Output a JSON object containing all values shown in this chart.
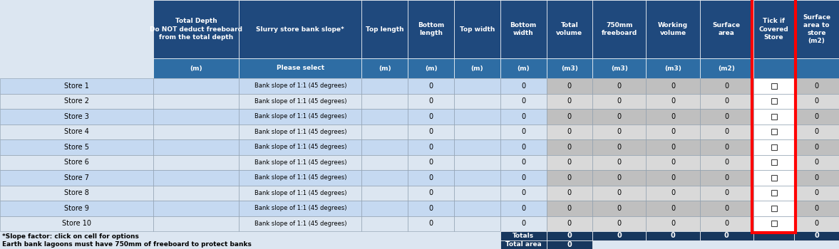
{
  "header_bg": "#1f497d",
  "header_bg2": "#2e6da4",
  "row_light": "#c5d9f1",
  "row_lighter": "#dce6f1",
  "grey_dark": "#bfbfbf",
  "grey_light": "#d9d9d9",
  "tick_bg": "#ffffff",
  "left_bg": "#dce6f1",
  "footer_bg": "#17375e",
  "white": "#ffffff",
  "black": "#000000",
  "red": "#ff0000",
  "col_headers": [
    "Total Depth\nDo NOT deduct freeboard\nfrom the total depth",
    "Slurry store bank slope*",
    "Top length",
    "Bottom\nlength",
    "Top width",
    "Bottom\nwidth",
    "Total\nvolume",
    "750mm\nfreeboard",
    "Working\nvolume",
    "Surface\narea",
    "Tick if\nCovered\nStore",
    "Surface\narea to\nstore\n(m2)"
  ],
  "col_units": [
    "(m)",
    "Please select",
    "(m)",
    "(m)",
    "(m)",
    "(m)",
    "(m3)",
    "(m3)",
    "(m3)",
    "(m2)",
    "",
    ""
  ],
  "row_labels": [
    "Store 1",
    "Store 2",
    "Store 3",
    "Store 4",
    "Store 5",
    "Store 6",
    "Store 7",
    "Store 8",
    "Store 9",
    "Store 10"
  ],
  "bank_slope": "Bank slope of 1:1 (45 degrees)",
  "note1": "*Slope factor: click on cell for options",
  "note2": "Earth bank lagoons must have 750mm of freeboard to protect banks",
  "figsize": [
    11.77,
    3.5
  ],
  "dpi": 100
}
